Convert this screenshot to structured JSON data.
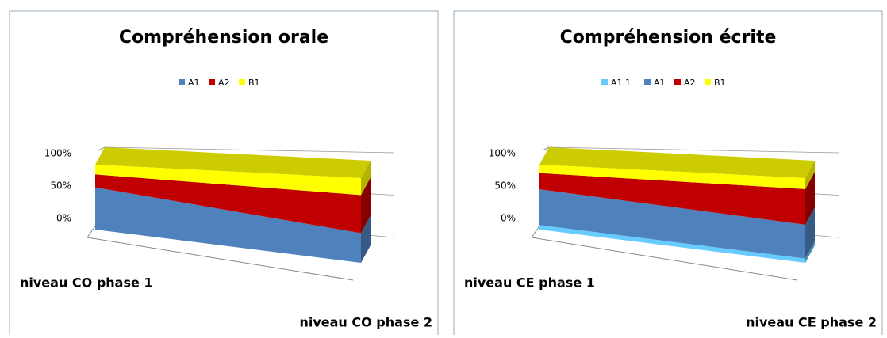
{
  "chart_data": [
    {
      "type": "area",
      "title": "Compréhension orale",
      "categories": [
        "niveau CO phase 1",
        "niveau CO phase 2"
      ],
      "series": [
        {
          "name": "A1",
          "color": "#4f81bd",
          "values": [
            65,
            35
          ]
        },
        {
          "name": "A2",
          "color": "#c00000",
          "values": [
            20,
            45
          ]
        },
        {
          "name": "B1",
          "color": "#ffff00",
          "values": [
            15,
            20
          ]
        }
      ],
      "ylim": [
        0,
        100
      ],
      "yticks": [
        {
          "value": 0,
          "label": "0%"
        },
        {
          "value": 50,
          "label": "50%"
        },
        {
          "value": 100,
          "label": "100%"
        }
      ],
      "grid": true,
      "stacking": "percent",
      "legend": "top"
    },
    {
      "type": "area",
      "title": "Compréhension écrite",
      "categories": [
        "niveau CE phase 1",
        "niveau CE phase 2"
      ],
      "series": [
        {
          "name": "A1.1",
          "color": "#66ccff",
          "values": [
            7,
            5
          ]
        },
        {
          "name": "A1",
          "color": "#4f81bd",
          "values": [
            55,
            40
          ]
        },
        {
          "name": "A2",
          "color": "#c00000",
          "values": [
            25,
            42
          ]
        },
        {
          "name": "B1",
          "color": "#ffff00",
          "values": [
            13,
            13
          ]
        }
      ],
      "ylim": [
        0,
        100
      ],
      "yticks": [
        {
          "value": 0,
          "label": "0%"
        },
        {
          "value": 50,
          "label": "50%"
        },
        {
          "value": 100,
          "label": "100%"
        }
      ],
      "grid": true,
      "stacking": "percent",
      "legend": "top"
    }
  ]
}
